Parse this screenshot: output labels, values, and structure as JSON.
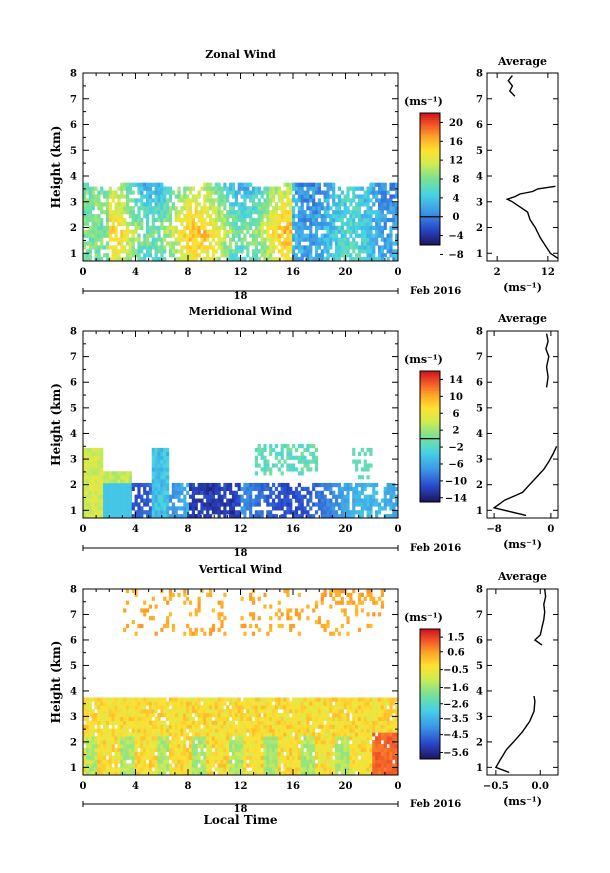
{
  "chart_data": [
    {
      "type": "heatmap",
      "title": "Zonal Wind",
      "ylabel": "Height (km)",
      "unit_label": "(ms⁻¹)",
      "xlim": [
        0,
        24
      ],
      "ylim": [
        0.7,
        8
      ],
      "x_ticks": [
        "0",
        "4",
        "8",
        "12",
        "16",
        "20",
        "0"
      ],
      "x_tick_values": [
        0,
        4,
        8,
        12,
        16,
        20,
        24
      ],
      "y_ticks": [
        "1",
        "2",
        "3",
        "4",
        "5",
        "6",
        "7",
        "8"
      ],
      "date_day": "18",
      "date_label": "Feb 2016",
      "colorbar": {
        "vmin": -6,
        "vmax": 22,
        "ticks": [
          20,
          16,
          12,
          8,
          4,
          0,
          -4,
          -8
        ],
        "tick_labels": [
          "20",
          "16",
          "12",
          "8",
          "4",
          "0",
          "−4",
          "−8"
        ],
        "contour_level": 0
      },
      "profile_title": "Average",
      "profile_xlabel": "(ms⁻¹)",
      "profile_xlim": [
        0,
        14
      ],
      "profile_x_ticks": [
        2,
        12
      ],
      "profile_x_tick_labels": [
        "2",
        "12"
      ],
      "average_profile": {
        "heights": [
          0.8,
          1.0,
          1.3,
          1.6,
          2.0,
          2.3,
          2.6,
          2.8,
          3.0,
          3.1,
          3.2,
          3.3,
          3.4,
          3.5,
          3.6,
          7.1,
          7.3,
          7.5,
          7.7,
          7.9
        ],
        "values": [
          14.0,
          12.5,
          11.5,
          10.5,
          9.5,
          8.5,
          8.0,
          6.5,
          5.0,
          4.0,
          5.5,
          6.5,
          9.0,
          10.0,
          13.5,
          5.5,
          4.5,
          5.0,
          4.2,
          5.0
        ]
      }
    },
    {
      "type": "heatmap",
      "title": "Meridional Wind",
      "ylabel": "Height (km)",
      "unit_label": "(ms⁻¹)",
      "xlim": [
        0,
        24
      ],
      "ylim": [
        0.7,
        8
      ],
      "x_ticks": [
        "0",
        "4",
        "8",
        "12",
        "16",
        "20",
        "0"
      ],
      "x_tick_values": [
        0,
        4,
        8,
        12,
        16,
        20,
        24
      ],
      "y_ticks": [
        "1",
        "2",
        "3",
        "4",
        "5",
        "6",
        "7",
        "8"
      ],
      "date_day": "18",
      "date_label": "Feb 2016",
      "colorbar": {
        "vmin": -15,
        "vmax": 16,
        "ticks": [
          14,
          10,
          6,
          2,
          -2,
          -6,
          -10,
          -14
        ],
        "tick_labels": [
          "14",
          "10",
          "6",
          "2",
          "−2",
          "−6",
          "−10",
          "−14"
        ],
        "contour_level": 0
      },
      "profile_title": "Average",
      "profile_xlabel": "(ms⁻¹)",
      "profile_xlim": [
        -9,
        1
      ],
      "profile_x_ticks": [
        -8,
        0
      ],
      "profile_x_tick_labels": [
        "−8",
        "0"
      ],
      "average_profile": {
        "heights": [
          0.8,
          1.1,
          1.4,
          1.7,
          2.0,
          2.3,
          2.6,
          2.9,
          3.2,
          3.5,
          5.8,
          6.2,
          6.6,
          7.0,
          7.3,
          7.6,
          7.9
        ],
        "values": [
          -3.5,
          -8.0,
          -6.5,
          -4.0,
          -3.0,
          -2.0,
          -1.0,
          -0.3,
          0.3,
          0.8,
          -0.6,
          -0.4,
          -0.6,
          -0.3,
          -0.7,
          -0.4,
          -0.6
        ]
      }
    },
    {
      "type": "heatmap",
      "title": "Vertical Wind",
      "ylabel": "Height (km)",
      "xlabel": "Local Time",
      "unit_label": "(ms⁻¹)",
      "xlim": [
        0,
        24
      ],
      "ylim": [
        0.7,
        8
      ],
      "x_ticks": [
        "0",
        "4",
        "8",
        "12",
        "16",
        "20",
        "0"
      ],
      "x_tick_values": [
        0,
        4,
        8,
        12,
        16,
        20,
        24
      ],
      "y_ticks": [
        "1",
        "2",
        "3",
        "4",
        "5",
        "6",
        "7",
        "8"
      ],
      "date_day": "18",
      "date_label": "Feb 2016",
      "colorbar": {
        "vmin": -6.0,
        "vmax": 2.0,
        "ticks": [
          1.5,
          0.6,
          -0.5,
          -1.6,
          -2.6,
          -3.5,
          -4.5,
          -5.6
        ],
        "tick_labels": [
          "1.5",
          "0.6",
          "−0.5",
          "−1.6",
          "−2.6",
          "−3.5",
          "−4.5",
          "−5.6"
        ]
      },
      "profile_title": "Average",
      "profile_xlabel": "(ms⁻¹)",
      "profile_xlim": [
        -0.6,
        0.2
      ],
      "profile_x_ticks": [
        -0.5,
        0.0
      ],
      "profile_x_tick_labels": [
        "−0.5",
        "0.0"
      ],
      "average_profile": {
        "heights": [
          0.8,
          1.0,
          1.3,
          1.7,
          2.0,
          2.4,
          2.8,
          3.2,
          3.6,
          3.8,
          5.8,
          6.0,
          6.2,
          6.5,
          6.8,
          7.1,
          7.4,
          7.7,
          8.0
        ],
        "values": [
          -0.35,
          -0.5,
          -0.45,
          -0.38,
          -0.3,
          -0.2,
          -0.12,
          -0.07,
          -0.06,
          -0.07,
          0.02,
          -0.06,
          0.0,
          0.02,
          0.04,
          0.05,
          0.04,
          0.06,
          0.05
        ]
      }
    }
  ]
}
